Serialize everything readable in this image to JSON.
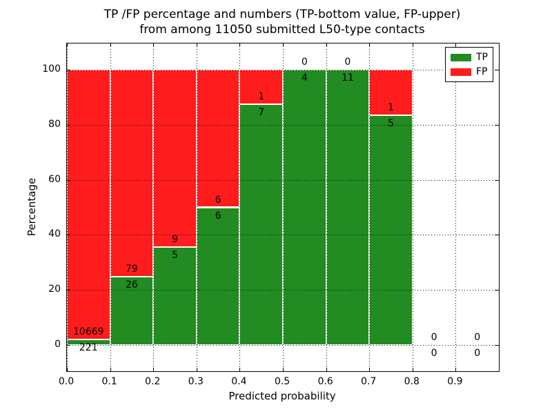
{
  "figure": {
    "title_line1": "TP /FP percentage and numbers (TP-bottom value, FP-upper)",
    "title_line2": "from among 11050 submitted L50-type contacts"
  },
  "axes": {
    "xlabel": "Predicted probability",
    "ylabel": "Percentage",
    "x_tick_labels": [
      "0.0",
      "0.1",
      "0.2",
      "0.3",
      "0.4",
      "0.5",
      "0.6",
      "0.7",
      "0.8",
      "0.9"
    ],
    "x_tick_values": [
      0.0,
      0.1,
      0.2,
      0.3,
      0.4,
      0.5,
      0.6,
      0.7,
      0.8,
      0.9
    ],
    "y_tick_labels": [
      "0",
      "20",
      "40",
      "60",
      "80",
      "100"
    ],
    "y_tick_values": [
      0,
      20,
      40,
      60,
      80,
      100
    ],
    "xlim": [
      0.0,
      1.0
    ],
    "ylim": [
      -9.5,
      109.5
    ],
    "grid": "dotted"
  },
  "legend": {
    "position": "upper-right",
    "items": [
      {
        "label": "TP",
        "color": "#228B22"
      },
      {
        "label": "FP",
        "color": "#FF1C1C"
      }
    ]
  },
  "chart_data": {
    "type": "bar",
    "stacked": true,
    "title": "TP /FP percentage and numbers (TP-bottom value, FP-upper) from among 11050 submitted L50-type contacts",
    "xlabel": "Predicted probability",
    "ylabel": "Percentage",
    "total_submitted": 11050,
    "bin_width": 0.1,
    "colors": {
      "tp": "#228B22",
      "fp": "#FF1C1C",
      "edge": "#FFFFFF"
    },
    "bins": [
      {
        "x0": 0.0,
        "x1": 0.1,
        "tp": 221,
        "fp": 10669,
        "tp_pct": 2.03,
        "total_pct": 100
      },
      {
        "x0": 0.1,
        "x1": 0.2,
        "tp": 26,
        "fp": 79,
        "tp_pct": 24.76,
        "total_pct": 100
      },
      {
        "x0": 0.2,
        "x1": 0.3,
        "tp": 5,
        "fp": 9,
        "tp_pct": 35.71,
        "total_pct": 100
      },
      {
        "x0": 0.3,
        "x1": 0.4,
        "tp": 6,
        "fp": 6,
        "tp_pct": 50.0,
        "total_pct": 100
      },
      {
        "x0": 0.4,
        "x1": 0.5,
        "tp": 7,
        "fp": 1,
        "tp_pct": 87.5,
        "total_pct": 100
      },
      {
        "x0": 0.5,
        "x1": 0.6,
        "tp": 4,
        "fp": 0,
        "tp_pct": 100.0,
        "total_pct": 100
      },
      {
        "x0": 0.6,
        "x1": 0.7,
        "tp": 11,
        "fp": 0,
        "tp_pct": 100.0,
        "total_pct": 100
      },
      {
        "x0": 0.7,
        "x1": 0.8,
        "tp": 5,
        "fp": 1,
        "tp_pct": 83.33,
        "total_pct": 100
      },
      {
        "x0": 0.8,
        "x1": 0.9,
        "tp": 0,
        "fp": 0,
        "tp_pct": 0,
        "total_pct": 0
      },
      {
        "x0": 0.9,
        "x1": 1.0,
        "tp": 0,
        "fp": 0,
        "tp_pct": 0,
        "total_pct": 0
      }
    ]
  }
}
